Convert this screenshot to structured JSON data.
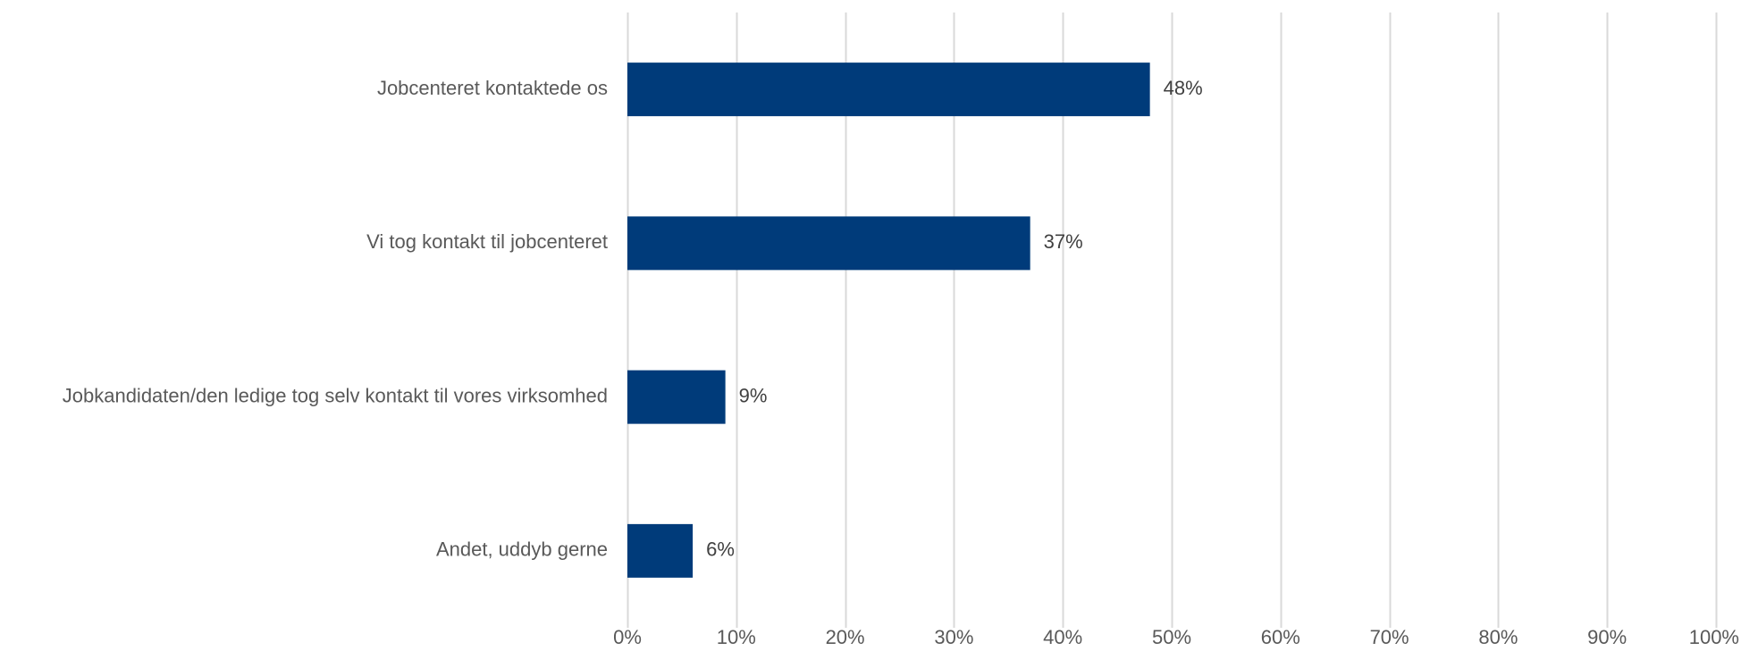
{
  "chart_data": {
    "type": "bar",
    "orientation": "horizontal",
    "title": "",
    "xlabel": "",
    "ylabel": "",
    "categories": [
      "Jobcenteret kontaktede os",
      "Vi tog kontakt til jobcenteret",
      "Jobkandidaten/den ledige tog selv kontakt til vores virksomhed",
      "Andet, uddyb gerne"
    ],
    "values": [
      48,
      37,
      9,
      6
    ],
    "value_labels": [
      "48%",
      "37%",
      "9%",
      "6%"
    ],
    "xlim": [
      0,
      100
    ],
    "x_ticks": [
      "0%",
      "10%",
      "20%",
      "30%",
      "40%",
      "50%",
      "60%",
      "70%",
      "80%",
      "90%",
      "100%"
    ],
    "grid": true,
    "legend": "none",
    "colors": {
      "bar": "#003b7a",
      "grid": "#d9d9d9",
      "text": "#595959"
    }
  }
}
